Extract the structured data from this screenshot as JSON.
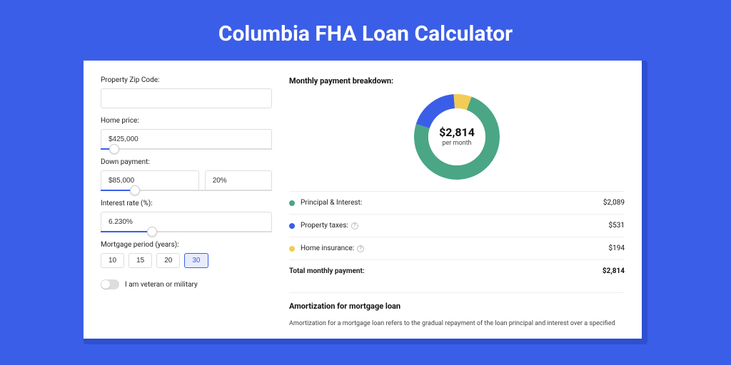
{
  "title": "Columbia FHA Loan Calculator",
  "form": {
    "zip": {
      "label": "Property Zip Code:",
      "value": ""
    },
    "home_price": {
      "label": "Home price:",
      "value": "$425,000",
      "slider_pct": 8
    },
    "down_payment": {
      "label": "Down payment:",
      "amount": "$85,000",
      "percent": "20%",
      "slider_pct": 20
    },
    "interest": {
      "label": "Interest rate (%):",
      "value": "6.230%",
      "slider_pct": 30
    },
    "period": {
      "label": "Mortgage period (years):",
      "options": [
        "10",
        "15",
        "20",
        "30"
      ],
      "selected_index": 3
    },
    "veteran": {
      "label": "I am veteran or military",
      "checked": false
    }
  },
  "breakdown": {
    "heading": "Monthly payment breakdown:",
    "center_amount": "$2,814",
    "center_sub": "per month",
    "items": [
      {
        "label": "Principal & Interest:",
        "value": "$2,089",
        "color": "#4aa684",
        "pct": 74.2,
        "help": false
      },
      {
        "label": "Property taxes:",
        "value": "$531",
        "color": "#3b5ee8",
        "pct": 18.9,
        "help": true
      },
      {
        "label": "Home insurance:",
        "value": "$194",
        "color": "#f2cc56",
        "pct": 6.9,
        "help": true
      }
    ],
    "total_label": "Total monthly payment:",
    "total_value": "$2,814"
  },
  "amort": {
    "heading": "Amortization for mortgage loan",
    "text": "Amortization for a mortgage loan refers to the gradual repayment of the loan principal and interest over a specified"
  },
  "donut_style": {
    "size": 120,
    "thickness": 20,
    "bg": "#ffffff"
  }
}
